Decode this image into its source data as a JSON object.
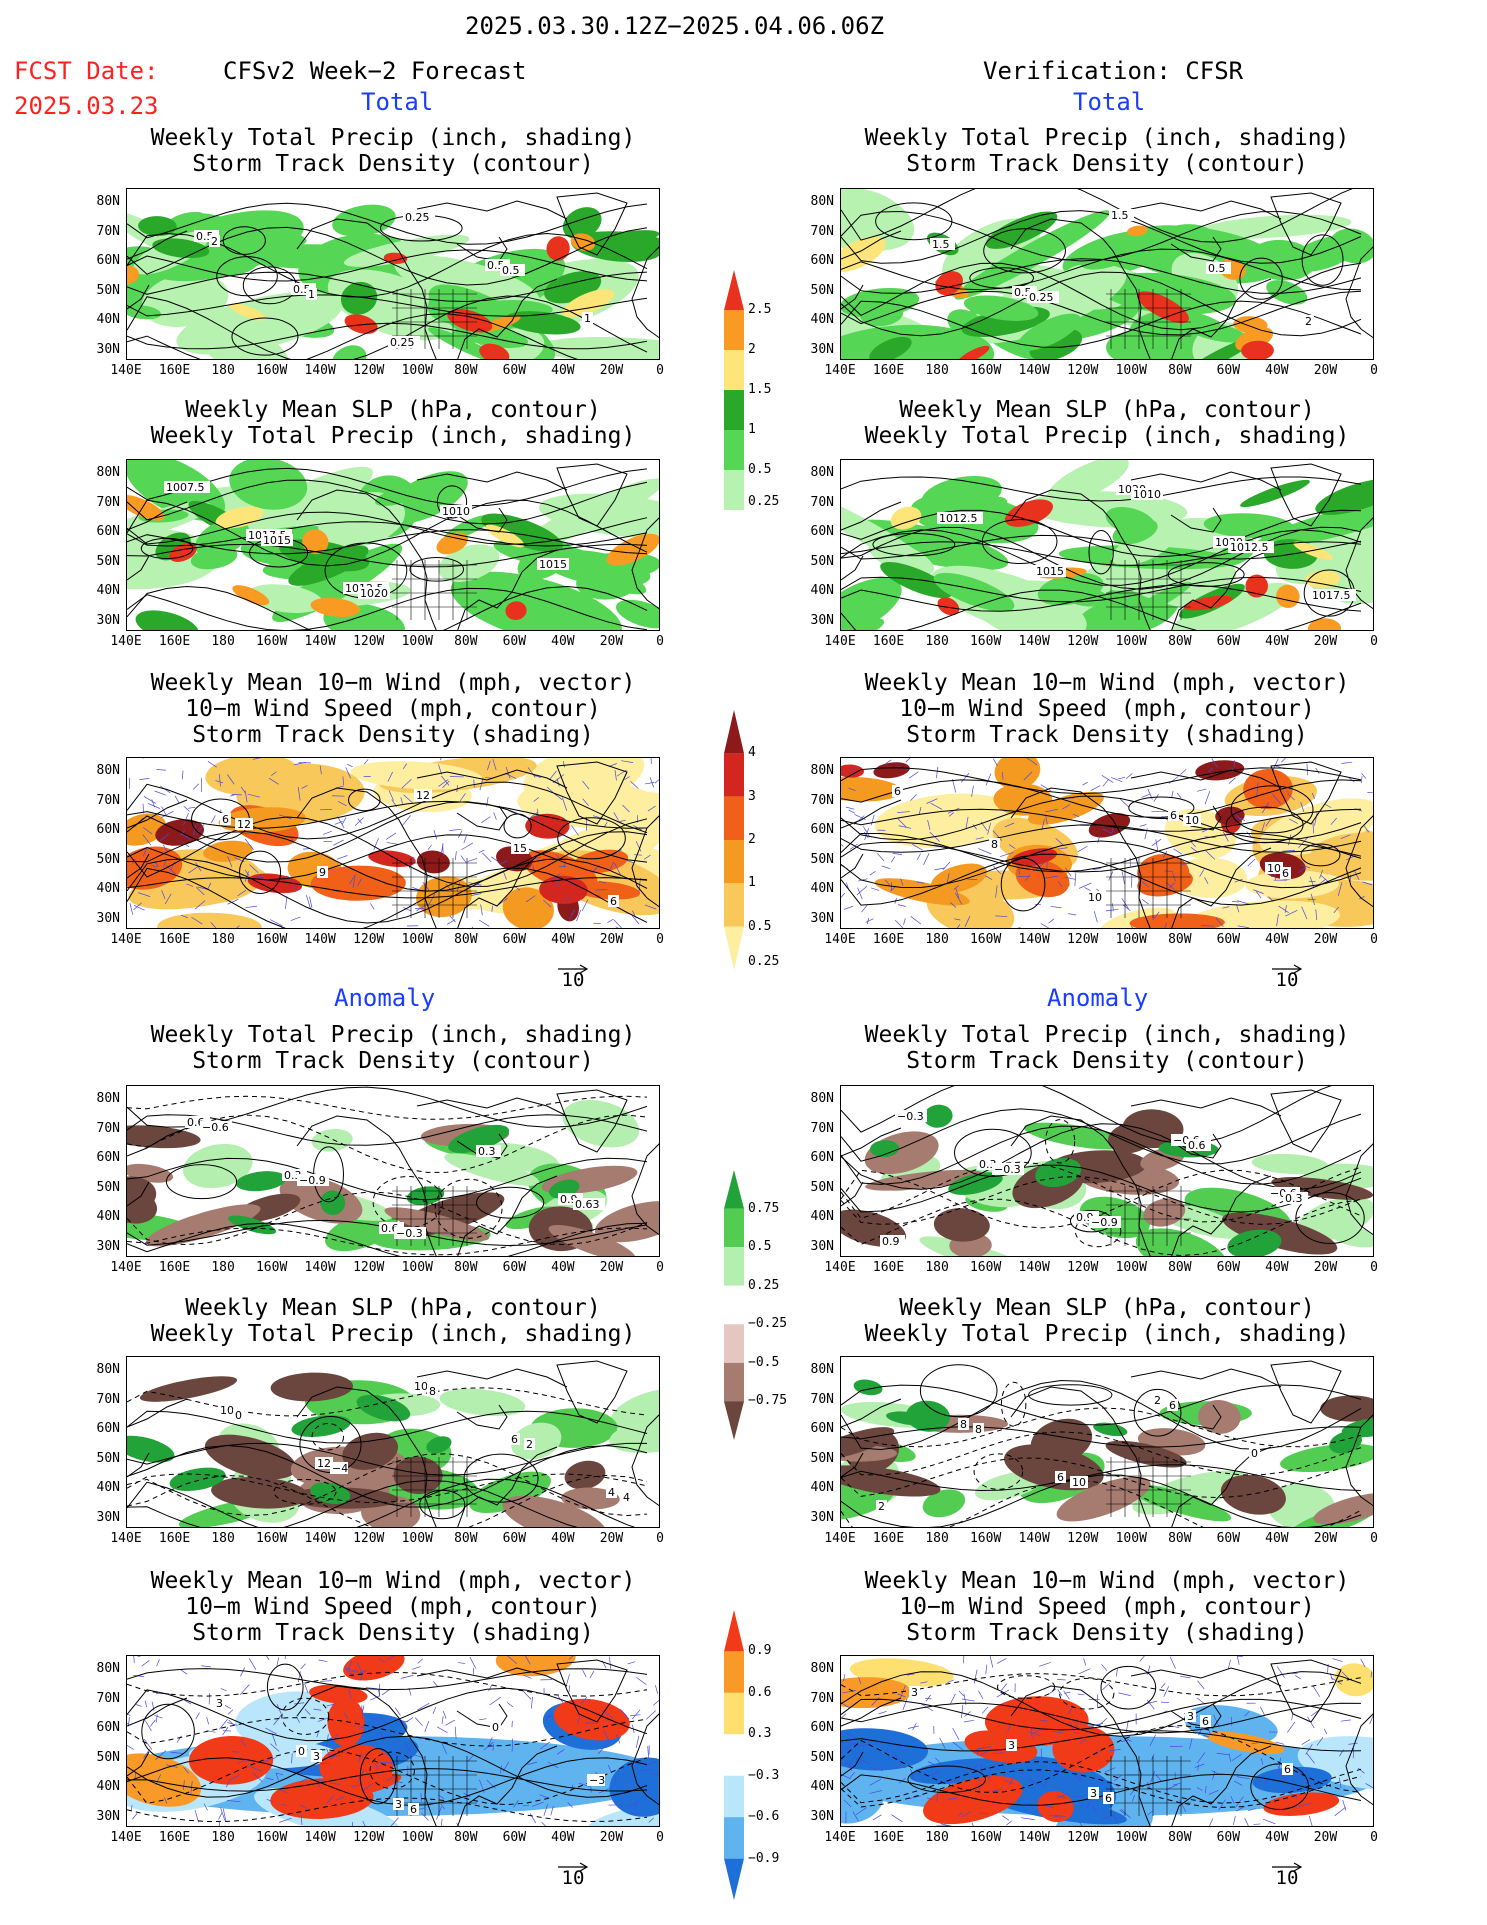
{
  "header": {
    "period": "2025.03.30.12Z−2025.04.06.06Z",
    "fcst_label": "FCST Date:",
    "fcst_date": "2025.03.23",
    "left_title": "CFSv2 Week−2 Forecast",
    "right_title": "Verification: CFSR"
  },
  "sections": {
    "total": "Total",
    "anomaly": "Anomaly"
  },
  "panel_titles": {
    "precip_storm": [
      "Weekly Total Precip (inch, shading)",
      "Storm Track Density (contour)"
    ],
    "slp_precip": [
      "Weekly Mean SLP (hPa, contour)",
      "Weekly Total Precip (inch, shading)"
    ],
    "wind_storm": [
      "Weekly Mean 10−m Wind (mph, vector)",
      "10−m Wind Speed (mph, contour)",
      "Storm Track Density (shading)"
    ]
  },
  "axes": {
    "lat_labels": [
      "80N",
      "70N",
      "60N",
      "50N",
      "40N",
      "30N"
    ],
    "lon_labels": [
      "140E",
      "160E",
      "180",
      "160W",
      "140W",
      "120W",
      "100W",
      "80W",
      "60W",
      "40W",
      "20W",
      "0"
    ]
  },
  "vector_ref": "10",
  "colorbars": {
    "precip_total": {
      "labels": [
        "2.5",
        "2",
        "1.5",
        "1",
        "0.5",
        "0.25"
      ],
      "colors": [
        "#e8321e",
        "#f99a22",
        "#fde57a",
        "#2aa82a",
        "#55d655",
        "#b7f2b0"
      ]
    },
    "storm_total": {
      "labels": [
        "4",
        "3",
        "2",
        "1",
        "0.5",
        "0.25"
      ],
      "colors": [
        "#8c1a1a",
        "#d2261e",
        "#f06018",
        "#f59a20",
        "#f9c85a",
        "#fdeea0"
      ]
    },
    "precip_anom": {
      "labels": [
        "0.75",
        "0.5",
        "0.25",
        "−0.25",
        "−0.5",
        "−0.75"
      ],
      "colors": [
        "#21a33a",
        "#52cd52",
        "#b4efb0",
        "#ffffff",
        "#e3c7c0",
        "#a67b70",
        "#6b463e"
      ]
    },
    "storm_anom": {
      "labels": [
        "0.9",
        "0.6",
        "0.3",
        "−0.3",
        "−0.6",
        "−0.9"
      ],
      "colors": [
        "#f03a18",
        "#f99a28",
        "#fde070",
        "#ffffff",
        "#b9e6fb",
        "#5fb4f0",
        "#1e6fd8"
      ]
    }
  },
  "contour_labels": {
    "fc_precip_total": [
      "0.5",
      "0.5",
      "0.25",
      "0.5",
      "1",
      "2",
      "1",
      "0.25",
      "0.5"
    ],
    "ob_precip_total": [
      "0.5",
      "1.5",
      "0.5",
      "2",
      "1.5",
      "0.25"
    ],
    "fc_slp_total": [
      "1017.5",
      "1012.5",
      "1010",
      "1015",
      "1007.5",
      "1015",
      "1020"
    ],
    "ob_slp_total": [
      "1020",
      "1020",
      "1017.5",
      "1012.5",
      "1015",
      "1010",
      "1012.5"
    ],
    "fc_wind_total": [
      "6",
      "9",
      "12",
      "15",
      "6",
      "12"
    ],
    "ob_wind_total": [
      "6",
      "10",
      "6",
      "8",
      "10",
      "10",
      "6"
    ],
    "fc_precip_anom": [
      "0.9",
      "0.6",
      "0.3",
      "0.6",
      "0.3",
      "0.63",
      "−0.6",
      "−0.9",
      "−0.3"
    ],
    "ob_precip_anom": [
      "0.9",
      "0.3",
      "0.9",
      "−0.6",
      "−0.6",
      "−0.3",
      "−0.3",
      "−0.9",
      "0.6",
      "0.3"
    ],
    "fc_slp_anom": [
      "10",
      "12",
      "10",
      "6",
      "4",
      "0",
      "−4",
      "8",
      "2",
      "4"
    ],
    "ob_slp_anom": [
      "8",
      "6",
      "2",
      "0",
      "2",
      "8",
      "10",
      "6"
    ],
    "fc_wind_anom": [
      "0",
      "3",
      "0",
      "−3",
      "3",
      "3",
      "6"
    ],
    "ob_wind_anom": [
      "3",
      "3",
      "6",
      "3",
      "3",
      "6",
      "6"
    ]
  }
}
